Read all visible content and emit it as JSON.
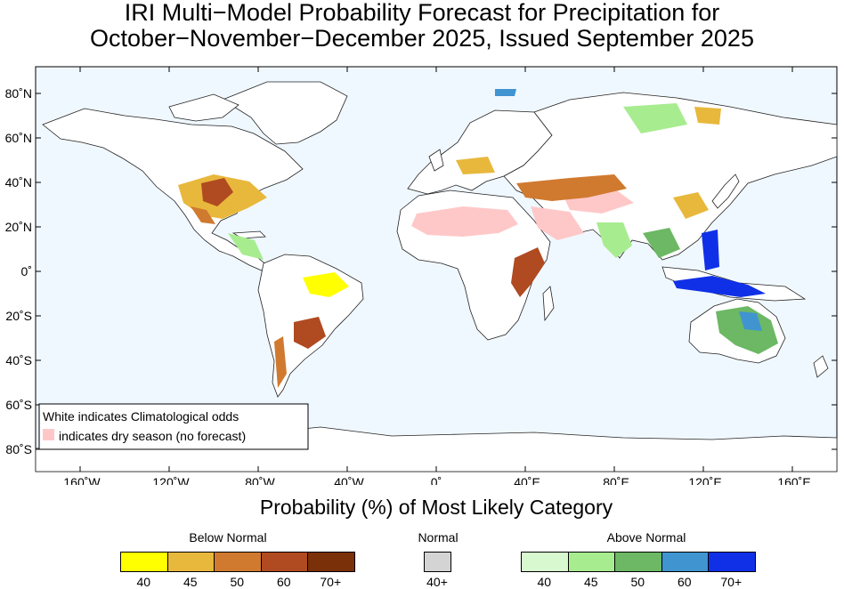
{
  "title": {
    "line1": "IRI Multi−Model Probability Forecast for Precipitation for",
    "line2": "October−November−December 2025, Issued September 2025"
  },
  "map": {
    "ocean_color": "#f0f8ff",
    "lat_labels": [
      "80˚N",
      "60˚N",
      "40˚N",
      "20˚N",
      "0˚",
      "20˚S",
      "40˚S",
      "60˚S",
      "80˚S"
    ],
    "lon_labels": [
      "160˚W",
      "120˚W",
      "80˚W",
      "40˚W",
      "0˚",
      "40˚E",
      "80˚E",
      "120˚E",
      "160˚E"
    ],
    "legend": {
      "line1": "White indicates Climatological odds",
      "line2": "indicates dry season (no forecast)",
      "dry_color": "#ffc8c8"
    }
  },
  "xlabel": "Probability (%) of Most Likely Category",
  "colorbar": {
    "below": {
      "label": "Below Normal",
      "ticks": [
        "40",
        "45",
        "50",
        "60",
        "70+"
      ],
      "colors": [
        "#ffff00",
        "#e8b83c",
        "#d07a30",
        "#b04a20",
        "#7a3008"
      ]
    },
    "normal": {
      "label": "Normal",
      "ticks": [
        "40+"
      ],
      "colors": [
        "#d4d4d4"
      ]
    },
    "above": {
      "label": "Above Normal",
      "ticks": [
        "40",
        "45",
        "50",
        "60",
        "70+"
      ],
      "colors": [
        "#d8f8d0",
        "#a8ec90",
        "#6cb864",
        "#4094d0",
        "#1030e8"
      ]
    }
  }
}
